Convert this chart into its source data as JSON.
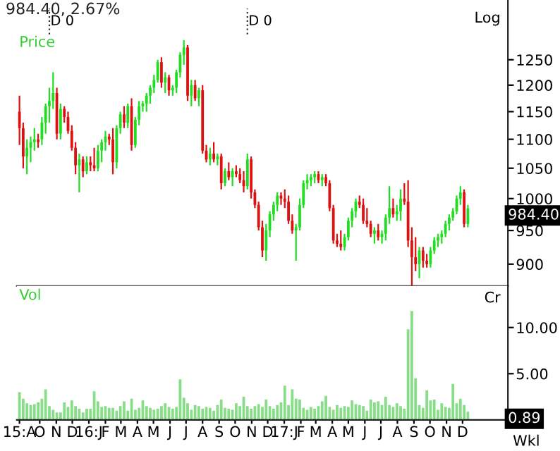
{
  "chart_data": [
    {
      "type": "candlestick",
      "title": "984.40, 2.67%",
      "ylabel": "Price",
      "log": true,
      "grid": false,
      "tick_labels": "y",
      "xlim": [
        "2015-08-19",
        "2018-02-24"
      ],
      "ylim": [
        869,
        1376
      ],
      "yticks": [
        900,
        950,
        1000,
        1050,
        1100,
        1150,
        1200,
        1250
      ],
      "annotations": [
        "Log",
        {
          "text": "984.40",
          "x": "2017-12-11",
          "y": 984.4
        }
      ],
      "ref_lines": [
        {
          "axis": "x",
          "value": "2015-10-19",
          "label": "D 0",
          "line_style": "dotted",
          "color": "#333333"
        },
        {
          "axis": "x",
          "value": "2016-10-24",
          "label": "D 0",
          "line_style": "dotted",
          "color": "#333333"
        }
      ],
      "x": [
        "2015-08-24",
        "2015-08-31",
        "2015-09-07",
        "2015-09-14",
        "2015-09-21",
        "2015-09-28",
        "2015-10-05",
        "2015-10-12",
        "2015-10-19",
        "2015-10-26",
        "2015-11-02",
        "2015-11-09",
        "2015-11-16",
        "2015-11-23",
        "2015-11-30",
        "2015-12-07",
        "2015-12-14",
        "2015-12-21",
        "2015-12-28",
        "2016-01-04",
        "2016-01-11",
        "2016-01-18",
        "2016-01-25",
        "2016-02-01",
        "2016-02-08",
        "2016-02-15",
        "2016-02-22",
        "2016-02-29",
        "2016-03-07",
        "2016-03-14",
        "2016-03-21",
        "2016-03-28",
        "2016-04-04",
        "2016-04-11",
        "2016-04-18",
        "2016-04-25",
        "2016-05-02",
        "2016-05-09",
        "2016-05-16",
        "2016-05-23",
        "2016-05-30",
        "2016-06-06",
        "2016-06-13",
        "2016-06-20",
        "2016-06-27",
        "2016-07-04",
        "2016-07-11",
        "2016-07-18",
        "2016-07-25",
        "2016-08-01",
        "2016-08-08",
        "2016-08-15",
        "2016-08-22",
        "2016-08-29",
        "2016-09-05",
        "2016-09-12",
        "2016-09-19",
        "2016-09-26",
        "2016-10-03",
        "2016-10-10",
        "2016-10-17",
        "2016-10-24",
        "2016-10-31",
        "2016-11-07",
        "2016-11-14",
        "2016-11-21",
        "2016-11-28",
        "2016-12-05",
        "2016-12-12",
        "2016-12-19",
        "2016-12-26",
        "2017-01-02",
        "2017-01-09",
        "2017-01-16",
        "2017-01-23",
        "2017-01-30",
        "2017-02-06",
        "2017-02-13",
        "2017-02-20",
        "2017-02-27",
        "2017-03-06",
        "2017-03-13",
        "2017-03-20",
        "2017-03-27",
        "2017-04-03",
        "2017-04-10",
        "2017-04-17",
        "2017-04-24",
        "2017-05-01",
        "2017-05-08",
        "2017-05-15",
        "2017-05-22",
        "2017-05-29",
        "2017-06-05",
        "2017-06-12",
        "2017-06-19",
        "2017-06-26",
        "2017-07-03",
        "2017-07-10",
        "2017-07-17",
        "2017-07-24",
        "2017-07-31",
        "2017-08-07",
        "2017-08-14",
        "2017-08-21",
        "2017-08-28",
        "2017-09-04",
        "2017-09-11",
        "2017-09-18",
        "2017-09-25",
        "2017-10-02",
        "2017-10-09",
        "2017-10-16",
        "2017-10-23",
        "2017-10-30",
        "2017-11-06",
        "2017-11-13",
        "2017-11-20",
        "2017-11-27",
        "2017-12-04",
        "2017-12-11"
      ],
      "ohlc": [
        [
          1150,
          1180,
          1090,
          1120
        ],
        [
          1120,
          1130,
          1050,
          1070
        ],
        [
          1070,
          1100,
          1040,
          1085
        ],
        [
          1085,
          1105,
          1060,
          1095
        ],
        [
          1095,
          1120,
          1080,
          1100
        ],
        [
          1100,
          1110,
          1085,
          1095
        ],
        [
          1100,
          1140,
          1090,
          1130
        ],
        [
          1130,
          1165,
          1110,
          1160
        ],
        [
          1160,
          1195,
          1130,
          1170
        ],
        [
          1170,
          1225,
          1155,
          1185
        ],
        [
          1185,
          1195,
          1100,
          1110
        ],
        [
          1110,
          1165,
          1100,
          1155
        ],
        [
          1155,
          1160,
          1130,
          1140
        ],
        [
          1140,
          1150,
          1110,
          1115
        ],
        [
          1115,
          1125,
          1080,
          1085
        ],
        [
          1085,
          1095,
          1040,
          1055
        ],
        [
          1055,
          1075,
          1010,
          1065
        ],
        [
          1065,
          1070,
          1035,
          1045
        ],
        [
          1045,
          1070,
          1040,
          1060
        ],
        [
          1060,
          1070,
          1045,
          1055
        ],
        [
          1055,
          1085,
          1045,
          1050
        ],
        [
          1050,
          1090,
          1045,
          1080
        ],
        [
          1080,
          1100,
          1060,
          1095
        ],
        [
          1095,
          1115,
          1080,
          1105
        ],
        [
          1105,
          1110,
          1090,
          1100
        ],
        [
          1100,
          1120,
          1040,
          1060
        ],
        [
          1060,
          1125,
          1050,
          1120
        ],
        [
          1120,
          1150,
          1110,
          1145
        ],
        [
          1145,
          1160,
          1120,
          1130
        ],
        [
          1130,
          1165,
          1120,
          1160
        ],
        [
          1160,
          1175,
          1080,
          1090
        ],
        [
          1090,
          1140,
          1085,
          1135
        ],
        [
          1135,
          1170,
          1125,
          1160
        ],
        [
          1160,
          1170,
          1150,
          1165
        ],
        [
          1165,
          1185,
          1150,
          1180
        ],
        [
          1180,
          1200,
          1165,
          1195
        ],
        [
          1195,
          1220,
          1185,
          1210
        ],
        [
          1210,
          1250,
          1205,
          1245
        ],
        [
          1245,
          1255,
          1195,
          1205
        ],
        [
          1205,
          1225,
          1185,
          1215
        ],
        [
          1215,
          1220,
          1180,
          1190
        ],
        [
          1190,
          1200,
          1180,
          1195
        ],
        [
          1195,
          1230,
          1185,
          1225
        ],
        [
          1225,
          1265,
          1215,
          1260
        ],
        [
          1260,
          1290,
          1240,
          1275
        ],
        [
          1275,
          1280,
          1170,
          1180
        ],
        [
          1180,
          1210,
          1160,
          1200
        ],
        [
          1200,
          1210,
          1170,
          1175
        ],
        [
          1175,
          1195,
          1160,
          1190
        ],
        [
          1190,
          1200,
          1075,
          1080
        ],
        [
          1080,
          1090,
          1060,
          1065
        ],
        [
          1065,
          1085,
          1055,
          1075
        ],
        [
          1075,
          1095,
          1060,
          1065
        ],
        [
          1065,
          1075,
          1055,
          1070
        ],
        [
          1070,
          1075,
          1015,
          1025
        ],
        [
          1025,
          1050,
          1020,
          1045
        ],
        [
          1045,
          1060,
          1030,
          1035
        ],
        [
          1035,
          1050,
          1020,
          1045
        ],
        [
          1045,
          1055,
          1035,
          1040
        ],
        [
          1040,
          1050,
          1025,
          1030
        ],
        [
          1030,
          1045,
          1010,
          1020
        ],
        [
          1020,
          1075,
          1015,
          1065
        ],
        [
          1065,
          1070,
          1000,
          1010
        ],
        [
          1010,
          1015,
          985,
          990
        ],
        [
          990,
          995,
          950,
          955
        ],
        [
          955,
          965,
          910,
          920
        ],
        [
          920,
          960,
          905,
          950
        ],
        [
          950,
          980,
          940,
          975
        ],
        [
          975,
          995,
          965,
          990
        ],
        [
          990,
          1010,
          980,
          1005
        ],
        [
          1005,
          1010,
          990,
          1000
        ],
        [
          1000,
          1015,
          985,
          995
        ],
        [
          995,
          1005,
          960,
          965
        ],
        [
          965,
          975,
          945,
          950
        ],
        [
          950,
          960,
          905,
          955
        ],
        [
          955,
          1000,
          950,
          990
        ],
        [
          990,
          1030,
          985,
          1025
        ],
        [
          1025,
          1040,
          1015,
          1030
        ],
        [
          1030,
          1040,
          1020,
          1035
        ],
        [
          1035,
          1045,
          1025,
          1040
        ],
        [
          1040,
          1045,
          1025,
          1030
        ],
        [
          1030,
          1040,
          1020,
          1035
        ],
        [
          1035,
          1040,
          1020,
          1025
        ],
        [
          1025,
          1030,
          980,
          985
        ],
        [
          985,
          990,
          930,
          935
        ],
        [
          935,
          945,
          925,
          930
        ],
        [
          930,
          950,
          920,
          925
        ],
        [
          925,
          945,
          920,
          940
        ],
        [
          940,
          970,
          935,
          965
        ],
        [
          965,
          985,
          955,
          980
        ],
        [
          980,
          1000,
          970,
          995
        ],
        [
          995,
          1005,
          985,
          990
        ],
        [
          990,
          1000,
          960,
          965
        ],
        [
          965,
          985,
          955,
          960
        ],
        [
          960,
          965,
          940,
          945
        ],
        [
          945,
          955,
          930,
          950
        ],
        [
          950,
          960,
          935,
          940
        ],
        [
          940,
          950,
          930,
          945
        ],
        [
          945,
          975,
          935,
          970
        ],
        [
          970,
          1020,
          960,
          985
        ],
        [
          985,
          1000,
          970,
          975
        ],
        [
          975,
          990,
          965,
          980
        ],
        [
          980,
          1015,
          965,
          1000
        ],
        [
          1000,
          1025,
          990,
          995
        ],
        [
          995,
          1030,
          925,
          935
        ],
        [
          935,
          955,
          865,
          910
        ],
        [
          910,
          940,
          890,
          900
        ],
        [
          900,
          925,
          880,
          920
        ],
        [
          920,
          925,
          895,
          905
        ],
        [
          905,
          915,
          895,
          900
        ],
        [
          900,
          925,
          895,
          920
        ],
        [
          920,
          940,
          915,
          935
        ],
        [
          935,
          945,
          925,
          940
        ],
        [
          940,
          950,
          930,
          945
        ],
        [
          945,
          965,
          940,
          960
        ],
        [
          960,
          975,
          950,
          970
        ],
        [
          970,
          985,
          965,
          980
        ],
        [
          980,
          1005,
          975,
          1000
        ],
        [
          1000,
          1020,
          990,
          1010
        ],
        [
          1010,
          1015,
          955,
          960
        ],
        [
          960,
          990,
          955,
          984.4
        ]
      ],
      "colors": [
        "#dd1111",
        "#dd1111",
        "#22dd22",
        "#22dd22",
        "#22dd22",
        "#dd1111",
        "#22dd22",
        "#22dd22",
        "#22dd22",
        "#22dd22",
        "#dd1111",
        "#22dd22",
        "#dd1111",
        "#dd1111",
        "#dd1111",
        "#dd1111",
        "#22dd22",
        "#dd1111",
        "#22dd22",
        "#dd1111",
        "#dd1111",
        "#22dd22",
        "#22dd22",
        "#22dd22",
        "#dd1111",
        "#dd1111",
        "#22dd22",
        "#22dd22",
        "#dd1111",
        "#22dd22",
        "#dd1111",
        "#22dd22",
        "#22dd22",
        "#22dd22",
        "#22dd22",
        "#22dd22",
        "#22dd22",
        "#22dd22",
        "#dd1111",
        "#22dd22",
        "#dd1111",
        "#22dd22",
        "#22dd22",
        "#22dd22",
        "#22dd22",
        "#dd1111",
        "#22dd22",
        "#dd1111",
        "#22dd22",
        "#dd1111",
        "#dd1111",
        "#22dd22",
        "#dd1111",
        "#22dd22",
        "#dd1111",
        "#22dd22",
        "#dd1111",
        "#22dd22",
        "#dd1111",
        "#dd1111",
        "#dd1111",
        "#22dd22",
        "#dd1111",
        "#dd1111",
        "#dd1111",
        "#dd1111",
        "#22dd22",
        "#22dd22",
        "#22dd22",
        "#22dd22",
        "#dd1111",
        "#dd1111",
        "#dd1111",
        "#dd1111",
        "#22dd22",
        "#22dd22",
        "#22dd22",
        "#22dd22",
        "#22dd22",
        "#22dd22",
        "#dd1111",
        "#22dd22",
        "#dd1111",
        "#dd1111",
        "#dd1111",
        "#dd1111",
        "#dd1111",
        "#22dd22",
        "#22dd22",
        "#22dd22",
        "#22dd22",
        "#dd1111",
        "#dd1111",
        "#dd1111",
        "#dd1111",
        "#22dd22",
        "#dd1111",
        "#22dd22",
        "#22dd22",
        "#22dd22",
        "#dd1111",
        "#22dd22",
        "#22dd22",
        "#dd1111",
        "#dd1111",
        "#dd1111",
        "#dd1111",
        "#22dd22",
        "#dd1111",
        "#dd1111",
        "#22dd22",
        "#22dd22",
        "#22dd22",
        "#22dd22",
        "#22dd22",
        "#22dd22",
        "#22dd22",
        "#22dd22",
        "#22dd22",
        "#dd1111",
        "#22dd22"
      ]
    },
    {
      "type": "bar",
      "ylabel": "Vol",
      "xlabel": "Wkl",
      "color": "#88dd88",
      "grid": false,
      "xlim": [
        "2015-08-19",
        "2018-02-24"
      ],
      "ylim": [
        0,
        14.5
      ],
      "yticks": [
        {
          "value": 5,
          "label": "5.00"
        },
        {
          "value": 10,
          "label": "10.00"
        }
      ],
      "xticks": [
        {
          "value": "2015-08-24",
          "label": "15:A"
        },
        {
          "value": "2015-10-01",
          "label": "O"
        },
        {
          "value": "2015-11-01",
          "label": "N"
        },
        {
          "value": "2015-12-01",
          "label": "D"
        },
        {
          "value": "2016-01-01",
          "label": "16:J"
        },
        {
          "value": "2016-02-01",
          "label": "F"
        },
        {
          "value": "2016-03-01",
          "label": "M"
        },
        {
          "value": "2016-04-01",
          "label": "A"
        },
        {
          "value": "2016-05-01",
          "label": "M"
        },
        {
          "value": "2016-06-01",
          "label": "J"
        },
        {
          "value": "2016-07-01",
          "label": "J"
        },
        {
          "value": "2016-08-01",
          "label": "A"
        },
        {
          "value": "2016-09-01",
          "label": "S"
        },
        {
          "value": "2016-10-01",
          "label": "O"
        },
        {
          "value": "2016-11-01",
          "label": "N"
        },
        {
          "value": "2016-12-01",
          "label": "D"
        },
        {
          "value": "2017-01-01",
          "label": "17:J"
        },
        {
          "value": "2017-02-01",
          "label": "F"
        },
        {
          "value": "2017-03-01",
          "label": "M"
        },
        {
          "value": "2017-04-01",
          "label": "A"
        },
        {
          "value": "2017-05-01",
          "label": "M"
        },
        {
          "value": "2017-06-01",
          "label": "J"
        },
        {
          "value": "2017-07-01",
          "label": "J"
        },
        {
          "value": "2017-08-01",
          "label": "A"
        },
        {
          "value": "2017-09-01",
          "label": "S"
        },
        {
          "value": "2017-10-01",
          "label": "O"
        },
        {
          "value": "2017-11-01",
          "label": "N"
        },
        {
          "value": "2017-12-01",
          "label": "D"
        }
      ],
      "annotations": [
        "Cr",
        {
          "text": "0.89",
          "x": "2017-12-11",
          "y": 0.89
        }
      ],
      "x": [
        "2015-08-24",
        "2015-08-31",
        "2015-09-07",
        "2015-09-14",
        "2015-09-21",
        "2015-09-28",
        "2015-10-05",
        "2015-10-12",
        "2015-10-19",
        "2015-10-26",
        "2015-11-02",
        "2015-11-09",
        "2015-11-16",
        "2015-11-23",
        "2015-11-30",
        "2015-12-07",
        "2015-12-14",
        "2015-12-21",
        "2015-12-28",
        "2016-01-04",
        "2016-01-11",
        "2016-01-18",
        "2016-01-25",
        "2016-02-01",
        "2016-02-08",
        "2016-02-15",
        "2016-02-22",
        "2016-02-29",
        "2016-03-07",
        "2016-03-14",
        "2016-03-21",
        "2016-03-28",
        "2016-04-04",
        "2016-04-11",
        "2016-04-18",
        "2016-04-25",
        "2016-05-02",
        "2016-05-09",
        "2016-05-16",
        "2016-05-23",
        "2016-05-30",
        "2016-06-06",
        "2016-06-13",
        "2016-06-20",
        "2016-06-27",
        "2016-07-04",
        "2016-07-11",
        "2016-07-18",
        "2016-07-25",
        "2016-08-01",
        "2016-08-08",
        "2016-08-15",
        "2016-08-22",
        "2016-08-29",
        "2016-09-05",
        "2016-09-12",
        "2016-09-19",
        "2016-09-26",
        "2016-10-03",
        "2016-10-10",
        "2016-10-17",
        "2016-10-24",
        "2016-10-31",
        "2016-11-07",
        "2016-11-14",
        "2016-11-21",
        "2016-11-28",
        "2016-12-05",
        "2016-12-12",
        "2016-12-19",
        "2016-12-26",
        "2017-01-02",
        "2017-01-09",
        "2017-01-16",
        "2017-01-23",
        "2017-01-30",
        "2017-02-06",
        "2017-02-13",
        "2017-02-20",
        "2017-02-27",
        "2017-03-06",
        "2017-03-13",
        "2017-03-20",
        "2017-03-27",
        "2017-04-03",
        "2017-04-10",
        "2017-04-17",
        "2017-04-24",
        "2017-05-01",
        "2017-05-08",
        "2017-05-15",
        "2017-05-22",
        "2017-05-29",
        "2017-06-05",
        "2017-06-12",
        "2017-06-19",
        "2017-06-26",
        "2017-07-03",
        "2017-07-10",
        "2017-07-17",
        "2017-07-24",
        "2017-07-31",
        "2017-08-07",
        "2017-08-14",
        "2017-08-21",
        "2017-08-28",
        "2017-09-04",
        "2017-09-11",
        "2017-09-18",
        "2017-09-25",
        "2017-10-02",
        "2017-10-09",
        "2017-10-16",
        "2017-10-23",
        "2017-10-30",
        "2017-11-06",
        "2017-11-13",
        "2017-11-20",
        "2017-11-27",
        "2017-12-04",
        "2017-12-11"
      ],
      "values": [
        3.0,
        2.3,
        1.8,
        1.6,
        1.7,
        1.9,
        2.3,
        3.3,
        1.5,
        1.1,
        0.8,
        0.8,
        1.9,
        1.4,
        2.1,
        1.5,
        1.2,
        0.8,
        1.2,
        1.2,
        3.1,
        2.0,
        1.4,
        1.5,
        1.3,
        1.3,
        1.0,
        1.5,
        2.0,
        1.0,
        2.3,
        1.1,
        1.3,
        2.1,
        1.5,
        1.3,
        1.1,
        1.2,
        1.5,
        1.8,
        1.4,
        1.2,
        1.4,
        4.4,
        2.4,
        1.8,
        1.1,
        1.6,
        1.5,
        1.2,
        1.4,
        1.3,
        1.0,
        1.6,
        2.2,
        1.3,
        1.2,
        1.1,
        1.8,
        1.5,
        2.5,
        1.5,
        1.2,
        1.5,
        1.7,
        1.4,
        2.2,
        1.5,
        1.2,
        1.6,
        1.9,
        3.7,
        1.6,
        3.3,
        2.3,
        2.2,
        1.3,
        1.1,
        1.4,
        1.2,
        1.5,
        2.0,
        2.6,
        1.4,
        1.1,
        1.6,
        1.3,
        1.5,
        1.4,
        2.1,
        1.7,
        1.6,
        1.5,
        1.0,
        2.2,
        1.9,
        2.0,
        1.6,
        2.5,
        1.6,
        1.4,
        1.8,
        1.5,
        1.2,
        9.8,
        11.8,
        4.5,
        1.6,
        1.3,
        3.2,
        2.1,
        2.2,
        1.1,
        1.8,
        1.4,
        1.3,
        3.9,
        1.8,
        2.3,
        1.6,
        0.89
      ]
    }
  ]
}
